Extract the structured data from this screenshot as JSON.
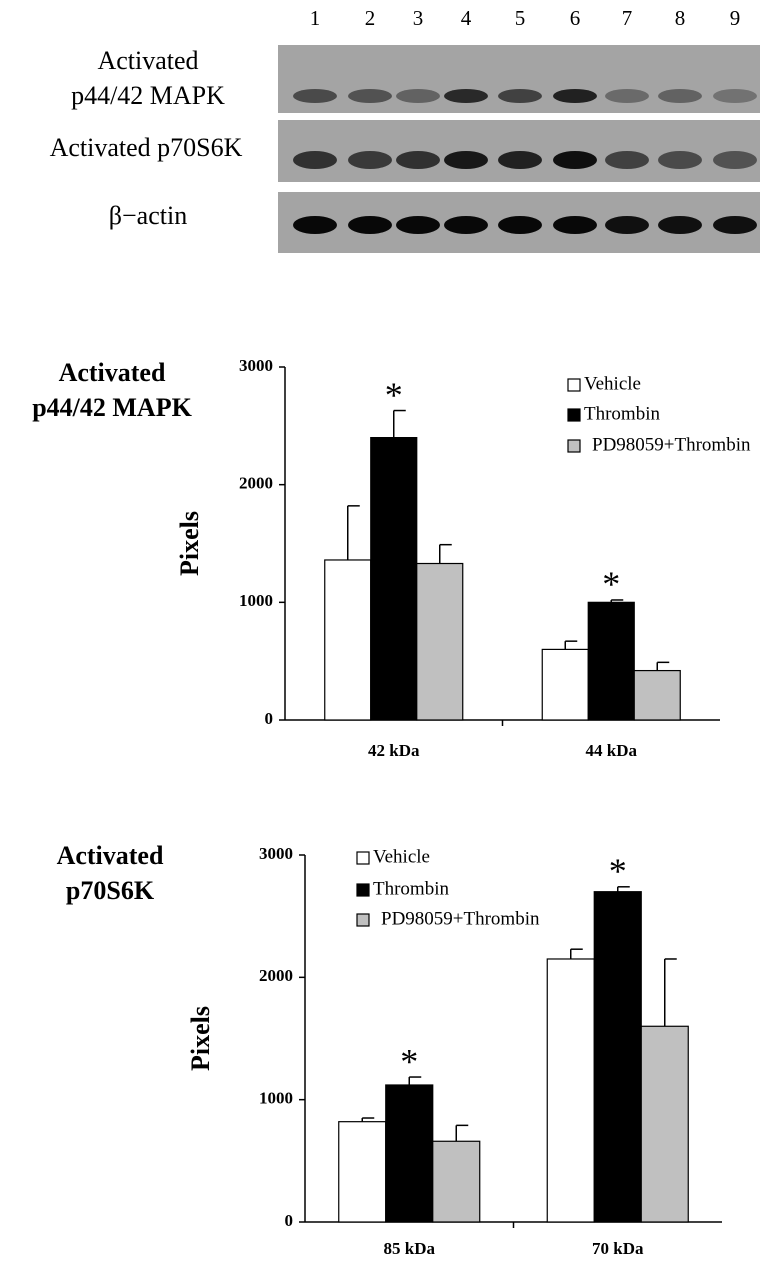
{
  "blot": {
    "lanes": [
      "1",
      "2",
      "3",
      "4",
      "5",
      "6",
      "7",
      "8",
      "9"
    ],
    "rows": [
      {
        "label_lines": [
          "Activated",
          "p44/42 MAPK"
        ]
      },
      {
        "label_lines": [
          "Activated p70S6K"
        ]
      },
      {
        "label_lines": [
          "β−actin"
        ]
      }
    ]
  },
  "chart_data": [
    {
      "type": "bar",
      "title_lines": [
        "Activated",
        "p44/42 MAPK"
      ],
      "y_label": "Pixels",
      "categories": [
        "42 kDa",
        "44 kDa"
      ],
      "ylim": [
        0,
        3000
      ],
      "yticks": [
        0,
        1000,
        2000,
        3000
      ],
      "legend": "top-right",
      "series": [
        {
          "name": "Vehicle",
          "color": "#ffffff",
          "values": [
            1360,
            600
          ],
          "errors": [
            460,
            70
          ]
        },
        {
          "name": "Thrombin",
          "color": "#000000",
          "values": [
            2400,
            1000
          ],
          "errors": [
            230,
            20
          ],
          "marker_labels": [
            "*",
            "*"
          ]
        },
        {
          "name": "PD98059+Thrombin",
          "color": "#c0c0c0",
          "values": [
            1330,
            420
          ],
          "errors": [
            160,
            70
          ]
        }
      ]
    },
    {
      "type": "bar",
      "title_lines": [
        "Activated",
        "p70S6K"
      ],
      "y_label": "Pixels",
      "categories": [
        "85 kDa",
        "70 kDa"
      ],
      "ylim": [
        0,
        3000
      ],
      "yticks": [
        0,
        1000,
        2000,
        3000
      ],
      "legend": "top-left",
      "series": [
        {
          "name": "Vehicle",
          "color": "#ffffff",
          "values": [
            820,
            2150
          ],
          "errors": [
            30,
            80
          ]
        },
        {
          "name": "Thrombin",
          "color": "#000000",
          "values": [
            1120,
            2700
          ],
          "errors": [
            65,
            40
          ],
          "marker_labels": [
            "*",
            "*"
          ]
        },
        {
          "name": "PD98059+Thrombin",
          "color": "#c0c0c0",
          "values": [
            660,
            1600
          ],
          "errors": [
            130,
            550
          ]
        }
      ]
    }
  ]
}
